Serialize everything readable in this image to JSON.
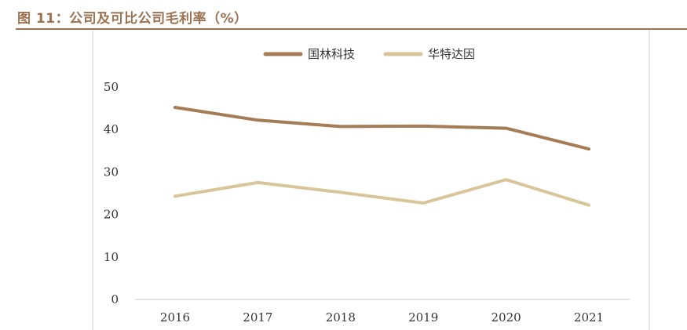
{
  "figure": {
    "title": "图 11：公司及可比公司毛利率（%）"
  },
  "colors": {
    "series_1": "#a57c55",
    "series_2": "#d8c69a",
    "title": "#9b7352",
    "axis": "#c8c8c8",
    "frame": "#d0d0d0"
  },
  "chart_data": {
    "type": "line",
    "title": "",
    "xlabel": "",
    "ylabel": "",
    "x": [
      "2016",
      "2017",
      "2018",
      "2019",
      "2020",
      "2021"
    ],
    "ylim": [
      0,
      50
    ],
    "yticks": [
      0,
      10,
      20,
      30,
      40,
      50
    ],
    "grid": false,
    "legend": "top-center",
    "series": [
      {
        "name": "国林科技",
        "values": [
          45.2,
          42.2,
          40.7,
          40.8,
          40.3,
          35.4
        ]
      },
      {
        "name": "华特达因",
        "values": [
          24.3,
          27.5,
          25.2,
          22.7,
          28.2,
          22.2
        ]
      }
    ]
  }
}
